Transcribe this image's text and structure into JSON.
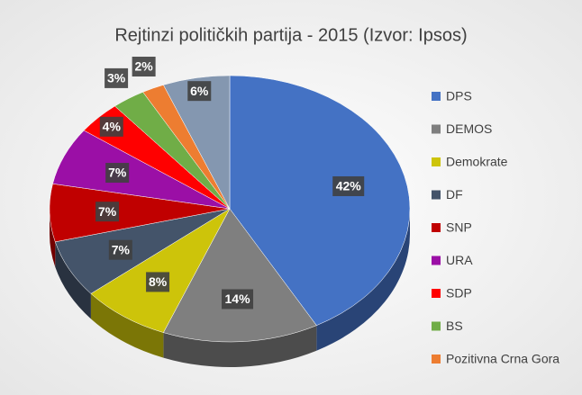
{
  "chart_data": {
    "type": "pie",
    "title": "Rejtinzi političkih partija - 2015 (Izvor: Ipsos)",
    "categories": [
      "DPS",
      "DEMOS",
      "Demokrate",
      "DF",
      "SNP",
      "URA",
      "SDP",
      "BS",
      "Pozitivna Crna Gora",
      null
    ],
    "values": [
      42,
      14,
      8,
      7,
      7,
      7,
      4,
      3,
      2,
      6
    ],
    "value_labels": [
      "42%",
      "14%",
      "8%",
      "7%",
      "7%",
      "7%",
      "4%",
      "3%",
      "2%",
      "6%"
    ],
    "colors": [
      "#4472c4",
      "#7f7f7f",
      "#cdc40a",
      "#44546a",
      "#c00000",
      "#9b0fa6",
      "#ff0000",
      "#70ad47",
      "#ed7d31",
      "#8497b0"
    ],
    "legend": "right"
  }
}
